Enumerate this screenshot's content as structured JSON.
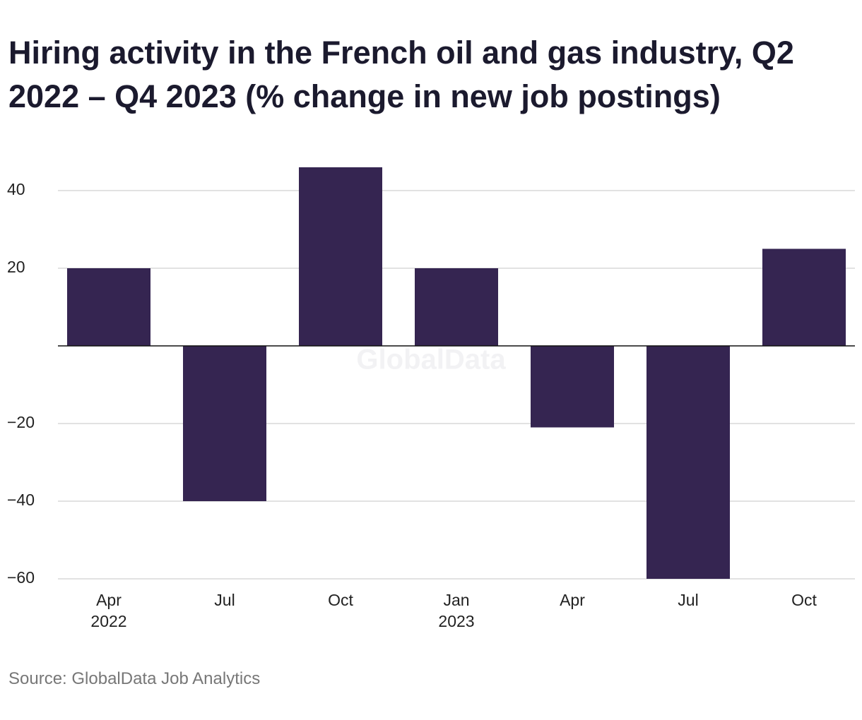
{
  "chart_data": {
    "type": "bar",
    "title": "Hiring activity in the French oil and gas industry, Q2 2022 – Q4 2023 (% change in new job postings)",
    "categories": [
      "Apr",
      "Jul",
      "Oct",
      "Jan",
      "Apr",
      "Jul",
      "Oct"
    ],
    "x_sublabels": [
      "2022",
      null,
      null,
      "2023",
      null,
      null,
      null
    ],
    "values": [
      20,
      -40,
      46,
      20,
      -21,
      -60,
      25
    ],
    "color": "#352551",
    "ylim": [
      -60,
      48
    ],
    "yticks": [
      {
        "value": -60,
        "label": "−60"
      },
      {
        "value": -40,
        "label": "−40"
      },
      {
        "value": -20,
        "label": "−20"
      },
      20,
      40
    ],
    "grid": true,
    "watermark": "GlobalData",
    "source": "Source: GlobalData Job Analytics"
  }
}
